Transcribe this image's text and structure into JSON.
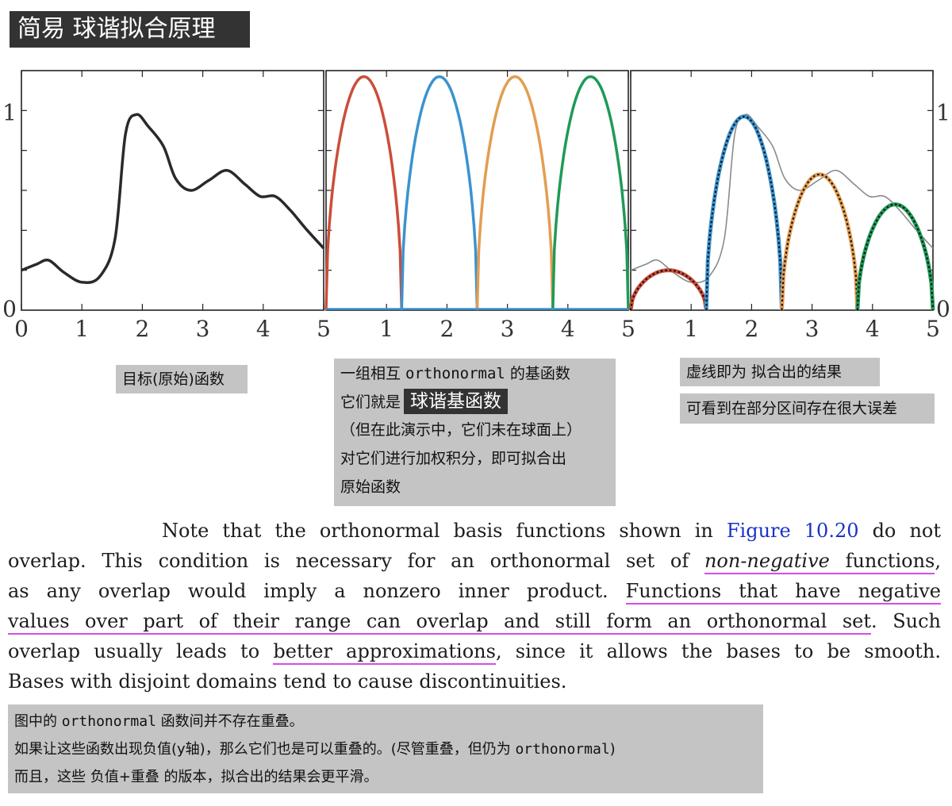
{
  "title": "简易 球谐拟合原理",
  "chart_data": [
    {
      "type": "line",
      "series": [
        {
          "name": "",
          "color": "#2a2a2a",
          "x": [
            0,
            0.25,
            0.45,
            0.7,
            1.0,
            1.3,
            1.55,
            1.72,
            1.9,
            2.1,
            2.35,
            2.55,
            2.8,
            3.1,
            3.4,
            3.7,
            3.95,
            4.2,
            4.45,
            4.7,
            5.0
          ],
          "y": [
            0.2,
            0.23,
            0.25,
            0.19,
            0.14,
            0.17,
            0.36,
            0.88,
            0.98,
            0.92,
            0.82,
            0.66,
            0.6,
            0.65,
            0.7,
            0.63,
            0.57,
            0.57,
            0.5,
            0.41,
            0.31
          ]
        }
      ],
      "xticks": [
        "0",
        "1",
        "2",
        "3",
        "4",
        "5"
      ],
      "yticks": [
        "0",
        "1"
      ],
      "xlim": [
        0,
        5
      ],
      "ylim": [
        0,
        1.2
      ]
    },
    {
      "type": "line",
      "series": [
        {
          "name": "",
          "color": "#cc4d3a",
          "domain": [
            0,
            1.25
          ],
          "peak": 1.17
        },
        {
          "name": "",
          "color": "#3b93cf",
          "domain": [
            1.25,
            2.5
          ],
          "peak": 1.17
        },
        {
          "name": "",
          "color": "#e39d52",
          "domain": [
            2.5,
            3.75
          ],
          "peak": 1.17
        },
        {
          "name": "",
          "color": "#1f9a57",
          "domain": [
            3.75,
            5.0
          ],
          "peak": 1.17
        }
      ],
      "xticks": [
        "1",
        "2",
        "3",
        "4",
        "5"
      ],
      "xlim": [
        0,
        5
      ],
      "ylim": [
        0,
        1.2
      ]
    },
    {
      "type": "line",
      "series": [
        {
          "name": "",
          "color": "#cc4d3a",
          "domain": [
            0,
            1.25
          ],
          "peak": 0.2
        },
        {
          "name": "",
          "color": "#3b93cf",
          "domain": [
            1.25,
            2.5
          ],
          "peak": 0.97
        },
        {
          "name": "",
          "color": "#e39d52",
          "domain": [
            2.5,
            3.75
          ],
          "peak": 0.68
        },
        {
          "name": "",
          "color": "#1f9a57",
          "domain": [
            3.75,
            5.0
          ],
          "peak": 0.53
        }
      ],
      "target_color": "#8a8a8a",
      "fit_style": "dotted-black",
      "xticks": [
        "1",
        "2",
        "3",
        "4",
        "5"
      ],
      "yticks": [
        "0",
        "1"
      ],
      "xlim": [
        0,
        5
      ],
      "ylim": [
        0,
        1.2
      ]
    }
  ],
  "captions": {
    "c1": "目标(原始)函数",
    "c2_l1_a": "一组相互 ",
    "c2_l1_b": "orthonormal",
    "c2_l1_c": " 的基函数",
    "c2_l2_a": "它们就是",
    "c2_l2_hl": "球谐基函数",
    "c2_l3": "（但在此演示中，它们未在球面上）",
    "c2_l4": "对它们进行加权积分，即可拟合出",
    "c2_l5": "原始函数",
    "c3a": "虚线即为 拟合出的结果",
    "c3b": "可看到在部分区间存在很大误差"
  },
  "paragraph": {
    "l1_a": "Note that the orthonormal basis functions shown in ",
    "l1_link": "Figure 10.20",
    "l1_b": " do not",
    "l2_a": "overlap. This condition is necessary for an orthonormal set of ",
    "l2_it": "non-negative",
    "l2_u": " functions",
    "l2_c": ",",
    "l3_a": "as any overlap would imply a nonzero inner product.  ",
    "l3_u": "Functions that have negative",
    "l4_u": "values over part of their range can overlap and still form an orthonormal set",
    "l4_b": ".  Such",
    "l5_a": "overlap usually leads to ",
    "l5_u": "better approximations",
    "l5_b": ", since it allows the bases to be smooth.",
    "l6": "Bases with disjoint domains tend to cause discontinuities."
  },
  "bottom_note": {
    "l1_a": "图中的 ",
    "l1_b": "orthonormal",
    "l1_c": " 函数间并不存在重叠。",
    "l2_a": "如果让这些函数出现负值(y轴)，那么它们也是可以重叠的。(尽管重叠，但仍为 ",
    "l2_b": "orthonormal",
    "l2_c": ")",
    "l3": "而且，这些 负值+重叠 的版本，拟合出的结果会更平滑。"
  }
}
